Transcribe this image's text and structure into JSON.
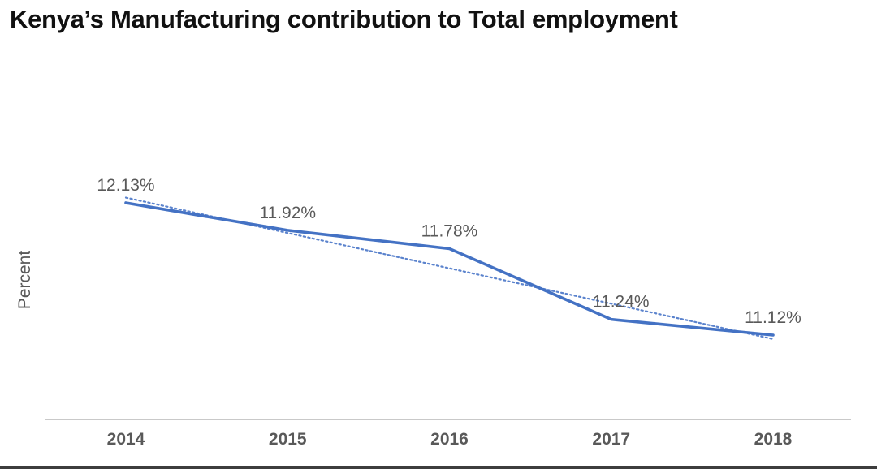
{
  "chart_data": {
    "type": "line",
    "title": "Kenya’s Manufacturing contribution to Total employment",
    "xlabel": "",
    "ylabel": "Percent",
    "categories": [
      "2014",
      "2015",
      "2016",
      "2017",
      "2018"
    ],
    "series": [
      {
        "name": "Manufacturing contribution to total employment",
        "style": "solid",
        "color": "#4472c4",
        "values": [
          12.13,
          11.92,
          11.78,
          11.24,
          11.12
        ],
        "labels": [
          "12.13%",
          "11.92%",
          "11.78%",
          "11.24%",
          "11.12%"
        ]
      },
      {
        "name": "Linear trendline",
        "style": "dotted",
        "color": "#5b83cd",
        "values": [
          12.17,
          11.9,
          11.63,
          11.36,
          11.09
        ]
      }
    ],
    "legend": "none",
    "grid": false,
    "axis_line_color": "#b7b7b7",
    "label_color": "#595959",
    "tick_color": "#595959",
    "ylim_implied": [
      11.0,
      12.25
    ]
  }
}
